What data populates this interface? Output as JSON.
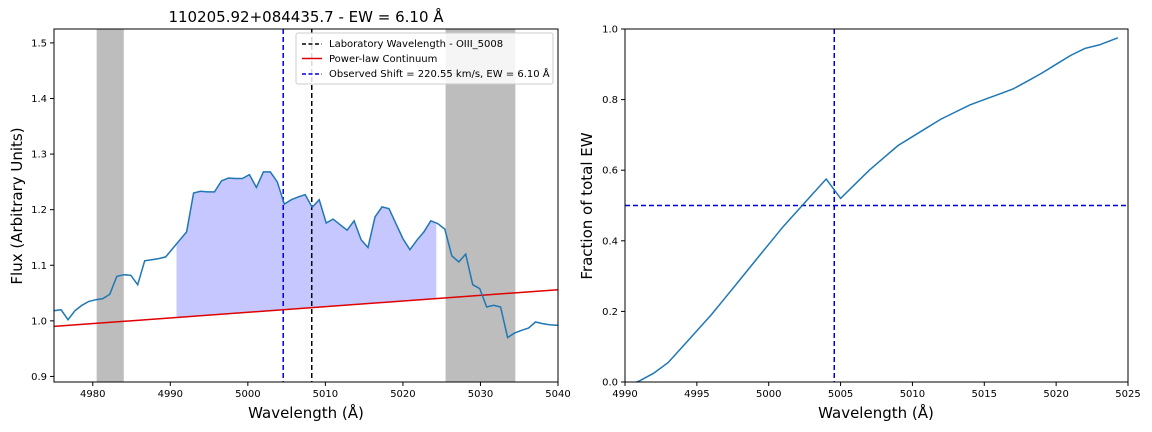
{
  "chart_data": [
    {
      "type": "line",
      "title": "110205.92+084435.7 - EW = 6.10 Å",
      "xlabel": "Wavelength (Å)",
      "ylabel": "Flux (Arbitrary Units)",
      "xlim": [
        4975,
        5040
      ],
      "ylim": [
        0.89,
        1.525
      ],
      "xticks": [
        4980,
        4990,
        5000,
        5010,
        5020,
        5030,
        5040
      ],
      "yticks": [
        0.9,
        1.0,
        1.1,
        1.2,
        1.3,
        1.4,
        1.5
      ],
      "grid": false,
      "legend_position": "top-right",
      "colors": {
        "spectrum": "#1f77b4",
        "continuum": "#e00000",
        "lab_line": "#000000",
        "observed_line": "#0000dd",
        "fill": "#9999ff",
        "continuum_windows": "#999999"
      },
      "shaded_windows": [
        [
          4980.5,
          4984.0
        ],
        [
          5025.5,
          5034.5
        ]
      ],
      "fill_range": [
        4990.8,
        5024.3
      ],
      "series": [
        {
          "name": "spectrum",
          "x": [
            4975.0,
            4975.9,
            4976.8,
            4977.7,
            4978.6,
            4979.5,
            4980.4,
            4981.3,
            4982.2,
            4983.1,
            4984.0,
            4984.9,
            4985.8,
            4986.7,
            4987.6,
            4988.5,
            4989.4,
            4990.3,
            4991.2,
            4992.1,
            4993.0,
            4993.9,
            4994.8,
            4995.7,
            4996.6,
            4997.5,
            4998.4,
            4999.3,
            5000.2,
            5001.1,
            5002.0,
            5002.9,
            5003.8,
            5004.7,
            5005.6,
            5006.5,
            5007.4,
            5008.3,
            5009.2,
            5010.1,
            5011.0,
            5011.9,
            5012.8,
            5013.7,
            5014.6,
            5015.5,
            5016.4,
            5017.3,
            5018.2,
            5019.1,
            5020.0,
            5020.9,
            5021.8,
            5022.7,
            5023.6,
            5024.5,
            5025.4,
            5026.3,
            5027.2,
            5028.1,
            5029.0,
            5029.9,
            5030.8,
            5031.7,
            5032.6,
            5033.5,
            5034.4,
            5035.3,
            5036.2,
            5037.1,
            5038.0,
            5038.9,
            5039.8,
            5040.0
          ],
          "y": [
            1.018,
            1.02,
            1.002,
            1.018,
            1.028,
            1.035,
            1.038,
            1.04,
            1.048,
            1.08,
            1.083,
            1.082,
            1.065,
            1.108,
            1.11,
            1.112,
            1.115,
            1.13,
            1.145,
            1.16,
            1.23,
            1.233,
            1.232,
            1.232,
            1.252,
            1.257,
            1.256,
            1.256,
            1.263,
            1.24,
            1.268,
            1.268,
            1.25,
            1.21,
            1.218,
            1.223,
            1.227,
            1.204,
            1.218,
            1.176,
            1.183,
            1.173,
            1.163,
            1.18,
            1.146,
            1.132,
            1.187,
            1.205,
            1.202,
            1.175,
            1.148,
            1.128,
            1.145,
            1.16,
            1.18,
            1.175,
            1.165,
            1.117,
            1.106,
            1.12,
            1.065,
            1.058,
            1.025,
            1.028,
            1.025,
            0.97,
            0.978,
            0.983,
            0.987,
            0.998,
            0.995,
            0.993,
            0.992,
            0.992
          ]
        },
        {
          "name": "Power-law Continuum",
          "x": [
            4975,
            5040
          ],
          "y": [
            0.99,
            1.056
          ]
        }
      ],
      "vlines": [
        {
          "name": "Laboratory Wavelength - OIII_5008",
          "x": 5008.24,
          "style": "dashed"
        },
        {
          "name": "Observed Shift = 220.55 km/s, EW = 6.10 Å",
          "x": 5004.56,
          "style": "dashed"
        }
      ],
      "legend": [
        {
          "label": "Laboratory Wavelength - OIII_5008",
          "style": "dashed",
          "color": "#000000"
        },
        {
          "label": "Power-law Continuum",
          "style": "solid",
          "color": "#e00000"
        },
        {
          "label": "Observed Shift = 220.55 km/s, EW = 6.10 Å",
          "style": "dashed",
          "color": "#0000dd"
        }
      ]
    },
    {
      "type": "line",
      "title": "",
      "xlabel": "Wavelength (Å)",
      "ylabel": "Fraction of total EW",
      "xlim": [
        4990,
        5025
      ],
      "ylim": [
        0.0,
        1.0
      ],
      "xticks": [
        4990,
        4995,
        5000,
        5005,
        5010,
        5015,
        5020,
        5025
      ],
      "yticks": [
        0.0,
        0.2,
        0.4,
        0.6,
        0.8,
        1.0
      ],
      "grid": false,
      "colors": {
        "curve": "#1f77b4",
        "guides": "#0000dd"
      },
      "series": [
        {
          "name": "",
          "x": [
            4990.8,
            4991.0,
            4992.0,
            4993.0,
            4994.0,
            4995.0,
            4996.0,
            4997.0,
            4998.0,
            4999.0,
            5000.0,
            5001.0,
            5002.0,
            5003.0,
            5004.0,
            5004.56,
            5005.0,
            5006.0,
            5007.0,
            5008.0,
            5009.0,
            5010.0,
            5011.0,
            5012.0,
            5013.0,
            5014.0,
            5015.0,
            5016.0,
            5017.0,
            5018.0,
            5019.0,
            5020.0,
            5021.0,
            5022.0,
            5023.0,
            5024.3
          ],
          "y": [
            0.0,
            0.003,
            0.025,
            0.055,
            0.1,
            0.145,
            0.19,
            0.24,
            0.29,
            0.34,
            0.39,
            0.44,
            0.485,
            0.53,
            0.575,
            0.5,
            0.52,
            0.56,
            0.6,
            0.635,
            0.67,
            0.695,
            0.72,
            0.745,
            0.765,
            0.785,
            0.8,
            0.815,
            0.83,
            0.852,
            0.875,
            0.9,
            0.925,
            0.945,
            0.955,
            0.975
          ]
        }
      ],
      "hline": {
        "y": 0.5,
        "style": "dashed"
      },
      "vline": {
        "x": 5004.56,
        "style": "dashed"
      }
    }
  ]
}
